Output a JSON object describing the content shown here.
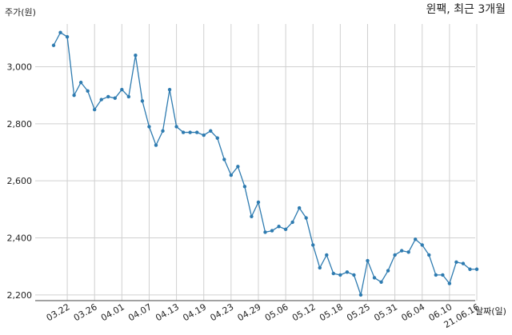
{
  "chart_data": {
    "type": "line",
    "title": "윈팩, 최근 3개월",
    "ylabel": "주가(원)",
    "xlabel": "날짜(일)",
    "ylim": [
      2180,
      3150
    ],
    "yticks": [
      2200,
      2400,
      2600,
      2800,
      3000
    ],
    "ytick_labels": [
      "2,200",
      "2,400",
      "2,600",
      "2,800",
      "3,000"
    ],
    "x_ticks": [
      {
        "index": 2,
        "label": "03.22"
      },
      {
        "index": 6,
        "label": "03.26"
      },
      {
        "index": 10,
        "label": "04.01"
      },
      {
        "index": 14,
        "label": "04.07"
      },
      {
        "index": 18,
        "label": "04.13"
      },
      {
        "index": 22,
        "label": "04.19"
      },
      {
        "index": 26,
        "label": "04.23"
      },
      {
        "index": 30,
        "label": "04.29"
      },
      {
        "index": 34,
        "label": "05.06"
      },
      {
        "index": 38,
        "label": "05.12"
      },
      {
        "index": 42,
        "label": "05.18"
      },
      {
        "index": 46,
        "label": "05.25"
      },
      {
        "index": 50,
        "label": "05.31"
      },
      {
        "index": 54,
        "label": "06.04"
      },
      {
        "index": 58,
        "label": "06.10"
      },
      {
        "index": 62,
        "label": "21.06.16"
      }
    ],
    "grid": true,
    "color": "#2e7bb0",
    "values": [
      3075,
      3120,
      3105,
      2900,
      2945,
      2915,
      2850,
      2885,
      2895,
      2890,
      2920,
      2895,
      3040,
      2880,
      2790,
      2725,
      2775,
      2920,
      2790,
      2770,
      2770,
      2770,
      2760,
      2775,
      2750,
      2675,
      2620,
      2650,
      2580,
      2475,
      2525,
      2420,
      2425,
      2440,
      2430,
      2455,
      2505,
      2470,
      2375,
      2295,
      2340,
      2275,
      2270,
      2280,
      2270,
      2200,
      2320,
      2260,
      2245,
      2285,
      2340,
      2355,
      2350,
      2395,
      2375,
      2340,
      2270,
      2270,
      2240,
      2315,
      2310,
      2290,
      2290
    ]
  }
}
